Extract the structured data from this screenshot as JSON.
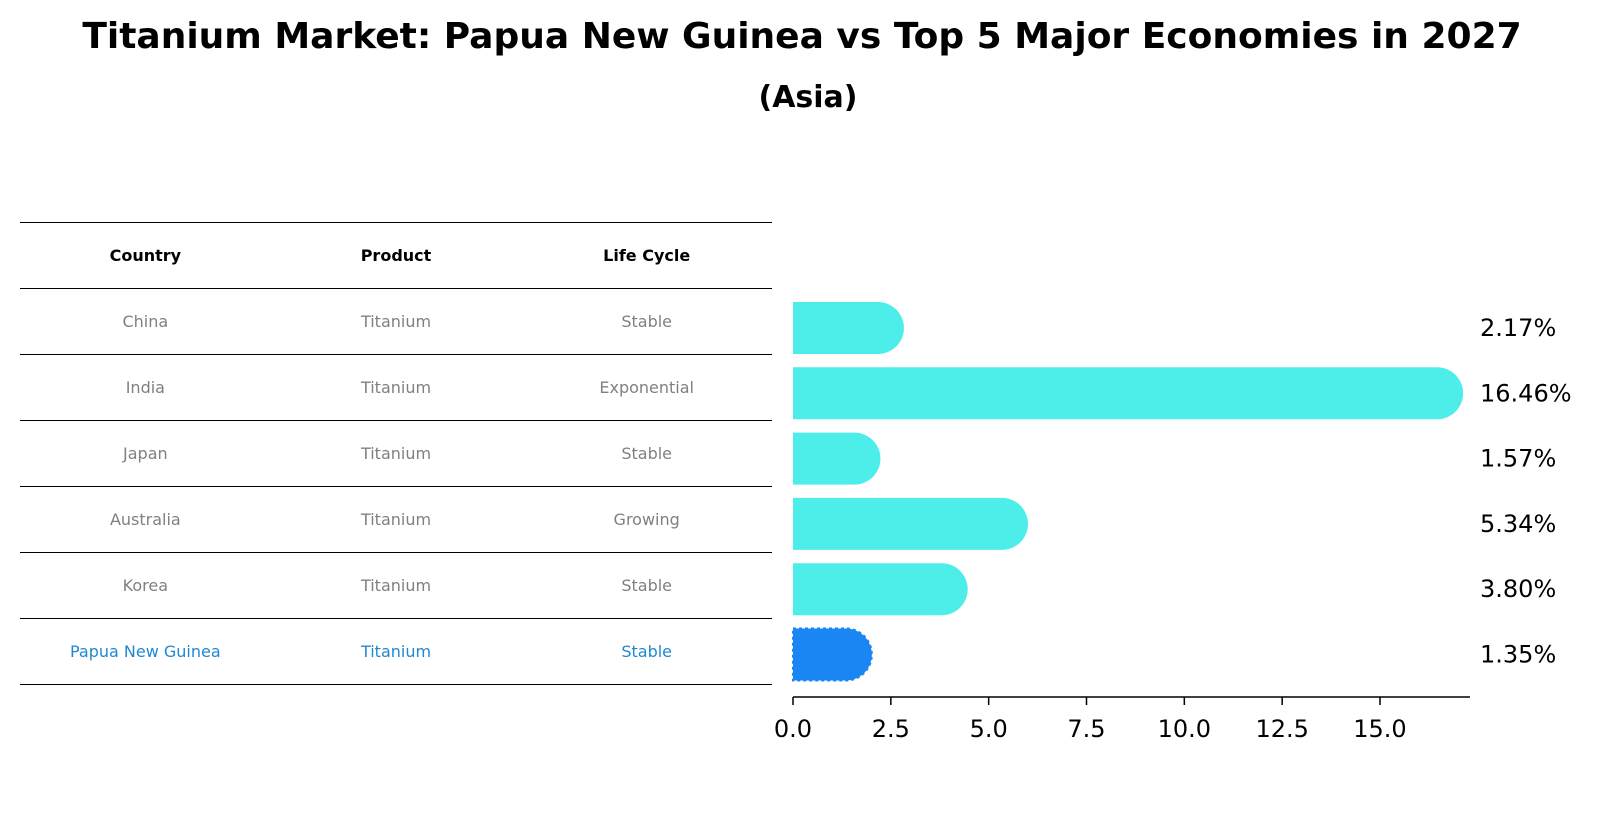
{
  "title": "Titanium Market: Papua New Guinea vs Top 5 Major Economies in 2027",
  "subtitle": "(Asia)",
  "table": {
    "headers": [
      "Country",
      "Product",
      "Life Cycle"
    ],
    "rows": [
      [
        "China",
        "Titanium",
        "Stable"
      ],
      [
        "India",
        "Titanium",
        "Exponential"
      ],
      [
        "Japan",
        "Titanium",
        "Stable"
      ],
      [
        "Australia",
        "Titanium",
        "Growing"
      ],
      [
        "Korea",
        "Titanium",
        "Stable"
      ],
      [
        "Papua New Guinea",
        "Titanium",
        "Stable"
      ]
    ],
    "highlight_color": "#1e88d3"
  },
  "chart_data": {
    "type": "bar",
    "orientation": "horizontal",
    "title": "Titanium Market: Papua New Guinea vs Top 5 Major Economies in 2027",
    "subtitle": "(Asia)",
    "categories": [
      "China",
      "India",
      "Japan",
      "Australia",
      "Korea",
      "Papua New Guinea"
    ],
    "values": [
      2.17,
      16.46,
      1.57,
      5.34,
      3.8,
      1.35
    ],
    "value_labels": [
      "2.17%",
      "16.46%",
      "1.57%",
      "5.34%",
      "3.80%",
      "1.35%"
    ],
    "highlight": "Papua New Guinea",
    "colors": {
      "default": "#4deeea",
      "highlight": "#1a86f4"
    },
    "xlim": [
      0,
      17.3
    ],
    "xticks": [
      0,
      2.5,
      5,
      7.5,
      10,
      12.5,
      15
    ],
    "xtick_labels": [
      "0.0",
      "2.5",
      "5.0",
      "7.5",
      "10.0",
      "12.5",
      "15.0"
    ],
    "xlabel": "",
    "ylabel": "",
    "grid": false
  }
}
